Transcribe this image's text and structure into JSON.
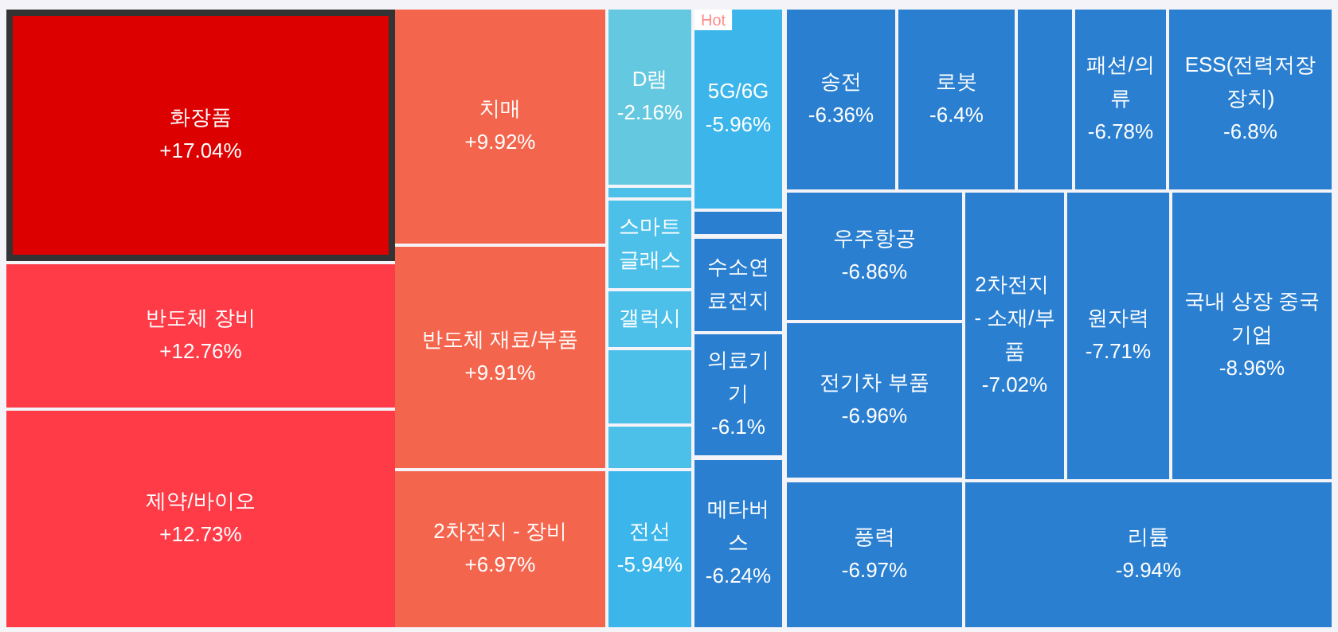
{
  "chart_data": {
    "type": "other",
    "categories": [
      "화장품",
      "반도체 장비",
      "제약/바이오",
      "치매",
      "반도체 재료/부품",
      "2차전지 - 장비",
      "D램",
      null,
      "스마트글래스",
      "갤럭시",
      null,
      null,
      "전선",
      "5G/6G",
      null,
      "수소연료전지",
      "의료기기",
      "메타버스",
      "송전",
      "로봇",
      null,
      "패션/의류",
      "ESS(전력저장장치)",
      "우주항공",
      "전기차 부품",
      "2차전지 - 소재/부품",
      "원자력",
      "국내 상장 중국기업",
      "풍력",
      "리튬"
    ],
    "values": [
      17.04,
      12.76,
      12.73,
      9.92,
      9.91,
      6.97,
      -2.16,
      null,
      null,
      null,
      null,
      null,
      -5.94,
      -5.96,
      null,
      null,
      -6.1,
      -6.24,
      -6.36,
      -6.4,
      null,
      -6.78,
      -6.8,
      -6.86,
      -6.96,
      -7.02,
      -7.71,
      -8.96,
      -6.97,
      -9.94
    ],
    "value_labels": [
      "+17.04%",
      "+12.76%",
      "+12.73%",
      "+9.92%",
      "+9.91%",
      "+6.97%",
      "-2.16%",
      null,
      null,
      null,
      null,
      null,
      "-5.94%",
      "-5.96%",
      null,
      null,
      "-6.1%",
      "-6.24%",
      "-6.36%",
      "-6.4%",
      null,
      "-6.78%",
      "-6.8%",
      "-6.86%",
      "-6.96%",
      "-7.02%",
      "-7.71%",
      "-8.96%",
      "-6.97%",
      "-9.94%"
    ],
    "colors": [
      "#dd0000",
      "#fe3b47",
      "#fe3b47",
      "#f4654d",
      "#f4654d",
      "#f4654d",
      "#64c8e0",
      "#4dc0ea",
      "#4dc0ea",
      "#4dc0ea",
      "#4dc0ea",
      "#4dc0ea",
      "#3bb5ea",
      "#3bb5ea",
      "#2a7fd0",
      "#2a7fd0",
      "#2a7fd0",
      "#2a7fd0",
      "#2a7fd0",
      "#2a7fd0",
      "#2a7fd0",
      "#2a7fd0",
      "#2a7fd0",
      "#2a7fd0",
      "#2a7fd0",
      "#2a7fd0",
      "#2a7fd0",
      "#2a7fd0",
      "#2a7fd0",
      "#2a7fd0"
    ],
    "annotations": [
      {
        "text": "Hot",
        "x": "5G/6G"
      }
    ]
  }
}
